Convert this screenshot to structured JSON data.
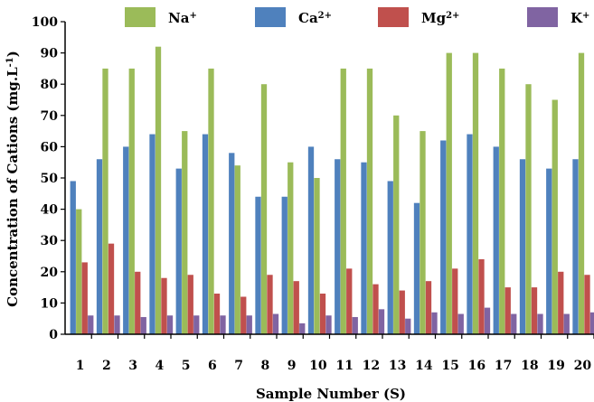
{
  "chart_data": {
    "type": "bar",
    "title": "",
    "xlabel": "Sample Number (S)",
    "ylabel": "Concentration of Cations (mg.L",
    "ylabel_sup": "-1",
    "ylabel_close": ")",
    "ylim": [
      0,
      100
    ],
    "ytick_step": 10,
    "grid": false,
    "legend_position": "top",
    "categories": [
      "1",
      "2",
      "3",
      "4",
      "5",
      "6",
      "7",
      "8",
      "9",
      "10",
      "11",
      "12",
      "13",
      "14",
      "15",
      "16",
      "17",
      "18",
      "19",
      "20"
    ],
    "series": [
      {
        "name": "Na",
        "sup": "+",
        "color": "#9bbb59",
        "values": [
          40,
          85,
          85,
          92,
          65,
          85,
          54,
          80,
          55,
          50,
          85,
          85,
          70,
          65,
          90,
          90,
          85,
          80,
          75,
          90
        ]
      },
      {
        "name": "Ca",
        "sup": "2+",
        "color": "#4f81bd",
        "values": [
          49,
          56,
          60,
          64,
          53,
          64,
          58,
          44,
          44,
          60,
          56,
          55,
          49,
          42,
          62,
          64,
          60,
          56,
          53,
          56
        ]
      },
      {
        "name": "Mg",
        "sup": "2+",
        "color": "#c0504d",
        "values": [
          23,
          29,
          20,
          18,
          19,
          13,
          12,
          19,
          17,
          13,
          21,
          16,
          14,
          17,
          21,
          24,
          15,
          15,
          20,
          19
        ]
      },
      {
        "name": "K",
        "sup": "+",
        "color": "#8064a2",
        "values": [
          6,
          6,
          5.5,
          6,
          6,
          6,
          6,
          6.5,
          3.5,
          6,
          5.5,
          8,
          5,
          7,
          6.5,
          8.5,
          6.5,
          6.5,
          6.5,
          7
        ]
      }
    ],
    "bar_order": [
      1,
      0,
      2,
      3
    ]
  }
}
